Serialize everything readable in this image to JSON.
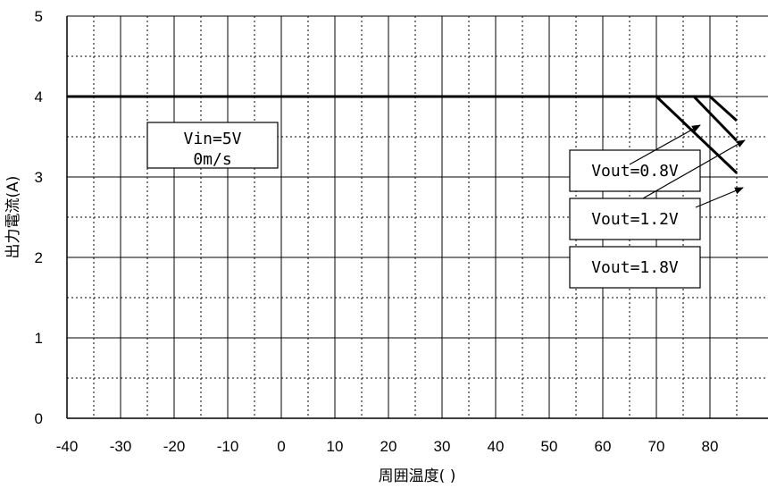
{
  "chart_data": {
    "type": "line",
    "xlabel": "周囲温度(  )",
    "ylabel": "出力電流(A)",
    "xlim": [
      -40,
      85
    ],
    "ylim": [
      0,
      5
    ],
    "x_ticks": [
      "-40",
      "-30",
      "-20",
      "-10",
      "0",
      "10",
      "20",
      "30",
      "40",
      "50",
      "60",
      "70",
      "80"
    ],
    "y_ticks": [
      "0",
      "1",
      "2",
      "3",
      "4",
      "5"
    ],
    "grid": true,
    "condition_box": [
      "Vin=5V",
      "0m/s"
    ],
    "series": [
      {
        "name": "Vout=0.8V",
        "x": [
          -40,
          70,
          85
        ],
        "y": [
          4,
          4,
          3.05
        ]
      },
      {
        "name": "Vout=1.2V",
        "x": [
          -40,
          77,
          85
        ],
        "y": [
          4,
          4,
          3.45
        ]
      },
      {
        "name": "Vout=1.8V",
        "x": [
          -40,
          80,
          85
        ],
        "y": [
          4,
          4,
          3.7
        ]
      }
    ]
  }
}
